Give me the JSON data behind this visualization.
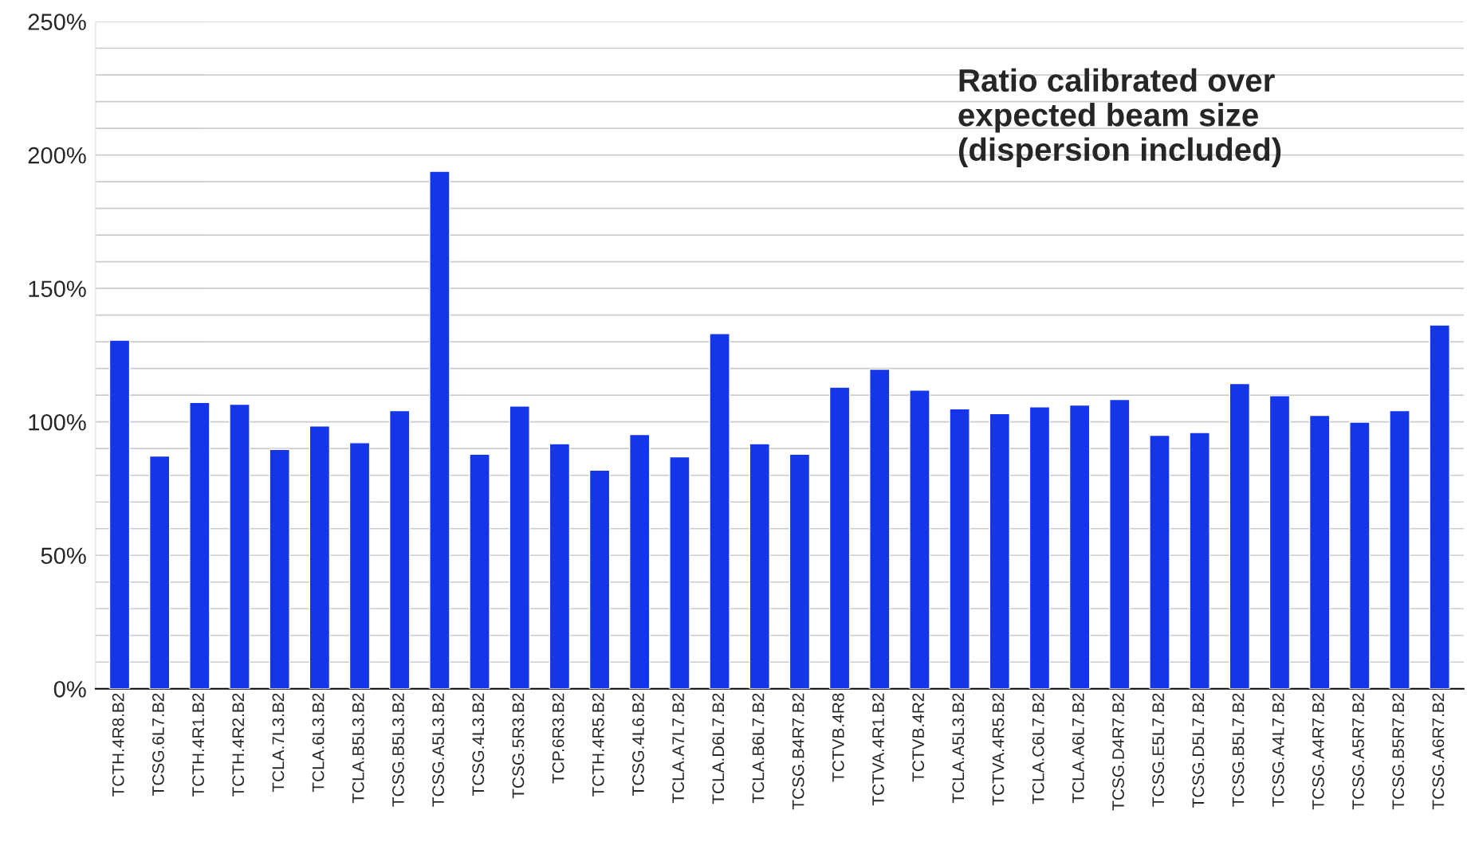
{
  "chart_data": {
    "type": "bar",
    "categories": [
      "TCTH.4R8.B2",
      "TCSG.6L7.B2",
      "TCTH.4R1.B2",
      "TCTH.4R2.B2",
      "TCLA.7L3.B2",
      "TCLA.6L3.B2",
      "TCLA.B5L3.B2",
      "TCSG.B5L3.B2",
      "TCSG.A5L3.B2",
      "TCSG.4L3.B2",
      "TCSG.5R3.B2",
      "TCP.6R3.B2",
      "TCTH.4R5.B2",
      "TCSG.4L6.B2",
      "TCLA.A7L7.B2",
      "TCLA.D6L7.B2",
      "TCLA.B6L7.B2",
      "TCSG.B4R7.B2",
      "TCTVB.4R8",
      "TCTVA.4R1.B2",
      "TCTVB.4R2",
      "TCLA.A5L3.B2",
      "TCTVA.4R5.B2",
      "TCLA.C6L7.B2",
      "TCLA.A6L7.B2",
      "TCSG.D4R7.B2",
      "TCSG.E5L7.B2",
      "TCSG.D5L7.B2",
      "TCSG.B5L7.B2",
      "TCSG.A4L7.B2",
      "TCSG.A4R7.B2",
      "TCSG.A5R7.B2",
      "TCSG.B5R7.B2",
      "TCSG.A6R7.B2"
    ],
    "values": [
      130.6,
      87.2,
      107.3,
      106.6,
      89.7,
      98.5,
      92.2,
      104.2,
      193.9,
      87.9,
      105.9,
      91.8,
      81.9,
      95.3,
      86.9,
      133.1,
      91.8,
      87.9,
      113,
      119.7,
      111.9,
      104.9,
      103.1,
      105.6,
      106.3,
      108.4,
      95,
      96,
      114.4,
      109.8,
      102.4,
      99.9,
      104.2,
      136.3
    ],
    "color": "#1436e8",
    "ylim": [
      0,
      250
    ],
    "yticks": [
      {
        "value": 0,
        "label": "0%"
      },
      {
        "value": 10,
        "label": null
      },
      {
        "value": 20,
        "label": null
      },
      {
        "value": 30,
        "label": null
      },
      {
        "value": 40,
        "label": null
      },
      {
        "value": 50,
        "label": "50%"
      },
      {
        "value": 60,
        "label": null
      },
      {
        "value": 70,
        "label": null
      },
      {
        "value": 80,
        "label": null
      },
      {
        "value": 90,
        "label": null
      },
      {
        "value": 100,
        "label": "100%"
      },
      {
        "value": 110,
        "label": null
      },
      {
        "value": 120,
        "label": null
      },
      {
        "value": 130,
        "label": null
      },
      {
        "value": 140,
        "label": null
      },
      {
        "value": 150,
        "label": "150%"
      },
      {
        "value": 160,
        "label": null
      },
      {
        "value": 170,
        "label": null
      },
      {
        "value": 180,
        "label": null
      },
      {
        "value": 190,
        "label": null
      },
      {
        "value": 200,
        "label": "200%"
      },
      {
        "value": 210,
        "label": null
      },
      {
        "value": 220,
        "label": null
      },
      {
        "value": 230,
        "label": null
      },
      {
        "value": 240,
        "label": null
      },
      {
        "value": 250,
        "label": "250%"
      }
    ],
    "grid": "y",
    "annotations": [
      "Ratio calibrated over\nexpected beam size\n(dispersion included)"
    ]
  }
}
